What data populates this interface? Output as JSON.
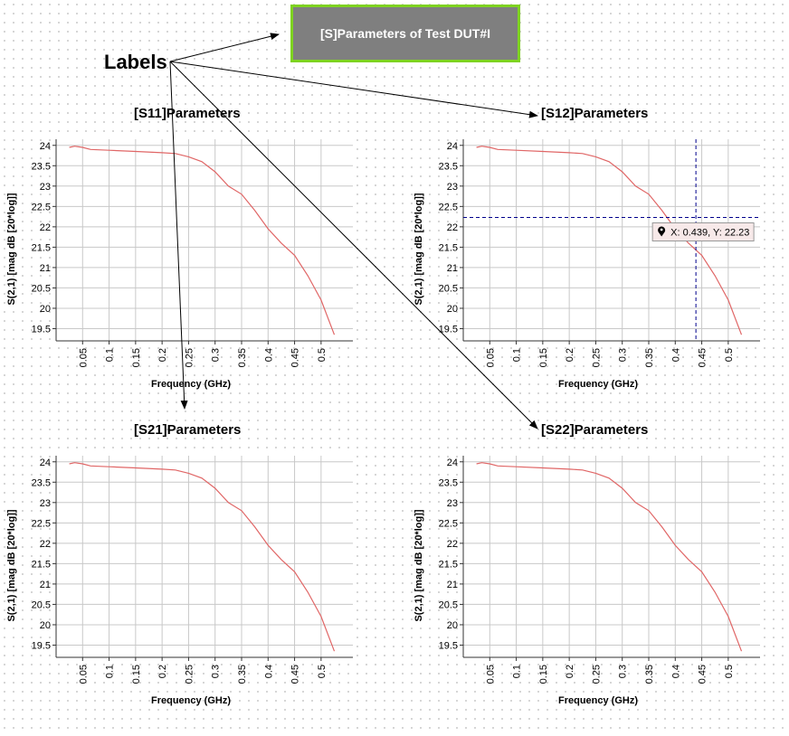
{
  "header": {
    "title": "[S]Parameters of Test DUT#I"
  },
  "annotation": {
    "label": "Labels"
  },
  "tooltip": {
    "text": "X: 0.439, Y: 22.23"
  },
  "colors": {
    "line": "#e06666",
    "grid": "#c8c8c8",
    "crosshair": "#00008b",
    "header_bg": "#7f7f7f",
    "header_border": "#7ed321"
  },
  "chart_data": [
    {
      "type": "line",
      "title": "[S11]Parameters",
      "xlabel": "Frequency (GHz)",
      "ylabel": "S(2,1) [mag dB [20*log]]",
      "xlim": [
        0,
        0.56
      ],
      "ylim": [
        19.2,
        24.15
      ],
      "xticks": [
        "0.05",
        "0.1",
        "0.15",
        "0.2",
        "0.25",
        "0.3",
        "0.35",
        "0.4",
        "0.45",
        "0.5"
      ],
      "yticks": [
        "19.5",
        "20",
        "20.5",
        "21",
        "21.5",
        "22",
        "22.5",
        "23",
        "23.5",
        "24"
      ],
      "grid": true,
      "x": [
        0.025,
        0.035,
        0.05,
        0.065,
        0.1,
        0.15,
        0.2,
        0.225,
        0.25,
        0.275,
        0.3,
        0.325,
        0.35,
        0.375,
        0.4,
        0.425,
        0.45,
        0.475,
        0.5,
        0.525
      ],
      "y": [
        23.95,
        23.98,
        23.95,
        23.9,
        23.88,
        23.85,
        23.82,
        23.8,
        23.72,
        23.6,
        23.35,
        23.0,
        22.8,
        22.4,
        21.95,
        21.6,
        21.3,
        20.8,
        20.2,
        19.35
      ]
    },
    {
      "type": "line",
      "title": "[S12]Parameters",
      "xlabel": "Frequency (GHz)",
      "ylabel": "S(2,1) [mag dB [20*log]]",
      "xlim": [
        0,
        0.56
      ],
      "ylim": [
        19.2,
        24.15
      ],
      "xticks": [
        "0.05",
        "0.1",
        "0.15",
        "0.2",
        "0.25",
        "0.3",
        "0.35",
        "0.4",
        "0.45",
        "0.5"
      ],
      "yticks": [
        "19.5",
        "20",
        "20.5",
        "21",
        "21.5",
        "22",
        "22.5",
        "23",
        "23.5",
        "24"
      ],
      "grid": true,
      "crosshair": {
        "x": 0.439,
        "y": 22.23
      },
      "x": [
        0.025,
        0.035,
        0.05,
        0.065,
        0.1,
        0.15,
        0.2,
        0.225,
        0.25,
        0.275,
        0.3,
        0.325,
        0.35,
        0.375,
        0.4,
        0.425,
        0.45,
        0.475,
        0.5,
        0.525
      ],
      "y": [
        23.95,
        23.98,
        23.95,
        23.9,
        23.88,
        23.85,
        23.82,
        23.8,
        23.72,
        23.6,
        23.35,
        23.0,
        22.8,
        22.4,
        21.95,
        21.6,
        21.3,
        20.8,
        20.2,
        19.35
      ]
    },
    {
      "type": "line",
      "title": "[S21]Parameters",
      "xlabel": "Frequency (GHz)",
      "ylabel": "S(2,1) [mag dB [20*log]]",
      "xlim": [
        0,
        0.56
      ],
      "ylim": [
        19.2,
        24.15
      ],
      "xticks": [
        "0.05",
        "0.1",
        "0.15",
        "0.2",
        "0.25",
        "0.3",
        "0.35",
        "0.4",
        "0.45",
        "0.5"
      ],
      "yticks": [
        "19.5",
        "20",
        "20.5",
        "21",
        "21.5",
        "22",
        "22.5",
        "23",
        "23.5",
        "24"
      ],
      "grid": true,
      "x": [
        0.025,
        0.035,
        0.05,
        0.065,
        0.1,
        0.15,
        0.2,
        0.225,
        0.25,
        0.275,
        0.3,
        0.325,
        0.35,
        0.375,
        0.4,
        0.425,
        0.45,
        0.475,
        0.5,
        0.525
      ],
      "y": [
        23.95,
        23.98,
        23.95,
        23.9,
        23.88,
        23.85,
        23.82,
        23.8,
        23.72,
        23.6,
        23.35,
        23.0,
        22.8,
        22.4,
        21.95,
        21.6,
        21.3,
        20.8,
        20.2,
        19.35
      ]
    },
    {
      "type": "line",
      "title": "[S22]Parameters",
      "xlabel": "Frequency (GHz)",
      "ylabel": "S(2,1) [mag dB [20*log]]",
      "xlim": [
        0,
        0.56
      ],
      "ylim": [
        19.2,
        24.15
      ],
      "xticks": [
        "0.05",
        "0.1",
        "0.15",
        "0.2",
        "0.25",
        "0.3",
        "0.35",
        "0.4",
        "0.45",
        "0.5"
      ],
      "yticks": [
        "19.5",
        "20",
        "20.5",
        "21",
        "21.5",
        "22",
        "22.5",
        "23",
        "23.5",
        "24"
      ],
      "grid": true,
      "x": [
        0.025,
        0.035,
        0.05,
        0.065,
        0.1,
        0.15,
        0.2,
        0.225,
        0.25,
        0.275,
        0.3,
        0.325,
        0.35,
        0.375,
        0.4,
        0.425,
        0.45,
        0.475,
        0.5,
        0.525
      ],
      "y": [
        23.95,
        23.98,
        23.95,
        23.9,
        23.88,
        23.85,
        23.82,
        23.8,
        23.72,
        23.6,
        23.35,
        23.0,
        22.8,
        22.4,
        21.95,
        21.6,
        21.3,
        20.8,
        20.2,
        19.35
      ]
    }
  ]
}
